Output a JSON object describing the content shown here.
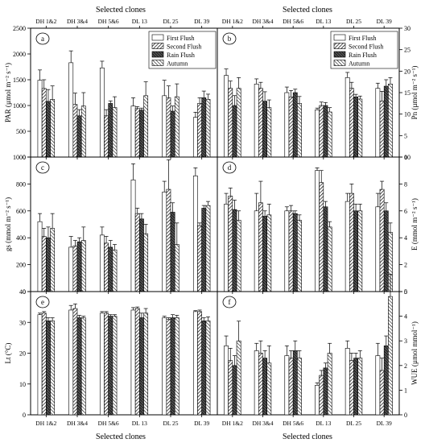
{
  "figure": {
    "top_xlabel": "Selected clones",
    "bottom_xlabel": "Selected clones",
    "legend_entries": [
      "First Flush",
      "Second Flush",
      "Rain Flush",
      "Autumn"
    ]
  },
  "chart_data": [
    {
      "type": "bar",
      "panel_label": "a",
      "ylabel": "PAR (µmol m⁻² s⁻¹)",
      "ylim": [
        0,
        2500
      ],
      "yticks": [
        "0",
        "500",
        "1000",
        "1500",
        "2000",
        "2500"
      ],
      "categories": [
        "DH 1&2",
        "DH 3&4",
        "DH 5&6",
        "DL 13",
        "DL 25",
        "DL 39"
      ],
      "legend_position": "top-right",
      "series": [
        {
          "name": "First Flush",
          "values": [
            1490,
            1830,
            1730,
            990,
            1190,
            770
          ],
          "errors": [
            200,
            230,
            130,
            160,
            300,
            100
          ]
        },
        {
          "name": "Second Flush",
          "values": [
            1330,
            1020,
            800,
            940,
            1150,
            1040
          ],
          "errors": [
            170,
            220,
            120,
            40,
            230,
            110
          ]
        },
        {
          "name": "Rain Flush",
          "values": [
            1080,
            800,
            1040,
            910,
            890,
            1150
          ],
          "errors": [
            230,
            120,
            50,
            40,
            100,
            130
          ]
        },
        {
          "name": "Autumn",
          "values": [
            1120,
            990,
            960,
            1190,
            1170,
            1120
          ],
          "errors": [
            260,
            260,
            210,
            270,
            250,
            100
          ]
        }
      ]
    },
    {
      "type": "bar",
      "panel_label": "b",
      "ylabel": "Pn (µmol m⁻² s⁻¹)",
      "ylim": [
        0,
        30
      ],
      "yticks": [
        "0",
        "5",
        "10",
        "15",
        "20",
        "25",
        "30"
      ],
      "categories": [
        "DH 1&2",
        "DH 3&4",
        "DH 5&6",
        "DL 13",
        "DL 25",
        "DL 39"
      ],
      "legend_position": "top-right",
      "series": [
        {
          "name": "First Flush",
          "values": [
            19,
            17,
            15,
            11,
            18.5,
            16
          ],
          "errors": [
            1.5,
            1.2,
            1.3,
            0.4,
            1.2,
            1.2
          ]
        },
        {
          "name": "Second Flush",
          "values": [
            16,
            16,
            14,
            12,
            16,
            13
          ],
          "errors": [
            1.7,
            1.4,
            1.5,
            0.8,
            1.4,
            2.3
          ]
        },
        {
          "name": "Rain Flush",
          "values": [
            12,
            13,
            15,
            12,
            14,
            16.5
          ],
          "errors": [
            2.3,
            2.2,
            0.8,
            0.7,
            0.6,
            1.5
          ]
        },
        {
          "name": "Autumn",
          "values": [
            16,
            11.5,
            12.5,
            10.5,
            13.5,
            17
          ],
          "errors": [
            2.5,
            1.8,
            1.6,
            1,
            0.7,
            1.5
          ]
        }
      ]
    },
    {
      "type": "bar",
      "panel_label": "c",
      "ylabel": "gs (mmol m⁻² s⁻¹)",
      "ylim": [
        0,
        1000
      ],
      "yticks": [
        "0",
        "200",
        "400",
        "600",
        "800",
        "1000"
      ],
      "categories": [
        "DH 1&2",
        "DH 3&4",
        "DH 5&6",
        "DL 13",
        "DL 25",
        "DL 39"
      ],
      "series": [
        {
          "name": "First Flush",
          "values": [
            520,
            330,
            420,
            830,
            740,
            860
          ],
          "errors": [
            60,
            80,
            60,
            120,
            80,
            60
          ]
        },
        {
          "name": "Second Flush",
          "values": [
            410,
            340,
            360,
            580,
            760,
            490
          ],
          "errors": [
            60,
            40,
            50,
            40,
            220,
            20
          ]
        },
        {
          "name": "Rain Flush",
          "values": [
            400,
            370,
            330,
            540,
            590,
            620
          ],
          "errors": [
            80,
            30,
            50,
            40,
            70,
            20
          ]
        },
        {
          "name": "Autumn",
          "values": [
            470,
            380,
            310,
            430,
            350,
            640
          ],
          "errors": [
            110,
            100,
            40,
            70,
            160,
            30
          ]
        }
      ]
    },
    {
      "type": "bar",
      "panel_label": "d",
      "ylabel": "E (mmol m⁻² s⁻¹)",
      "ylim": [
        0,
        10
      ],
      "yticks": [
        "0",
        "2",
        "4",
        "6",
        "8",
        "10"
      ],
      "categories": [
        "DH 1&2",
        "DH 3&4",
        "DH 5&6",
        "DL 13",
        "DL 25",
        "DL 39"
      ],
      "series": [
        {
          "name": "First Flush",
          "values": [
            6.5,
            6,
            6,
            9,
            6.7,
            6.3
          ],
          "errors": [
            0.8,
            1.3,
            0.3,
            0.2,
            0.6,
            1
          ]
        },
        {
          "name": "Second Flush",
          "values": [
            7.1,
            6.6,
            6,
            8.1,
            7.3,
            7.6
          ],
          "errors": [
            0.6,
            1.6,
            0.4,
            0.9,
            0.7,
            0.6
          ]
        },
        {
          "name": "Rain Flush",
          "values": [
            6.1,
            5.6,
            5.8,
            6.3,
            6,
            6
          ],
          "errors": [
            0.7,
            0.4,
            0.2,
            0.4,
            0.5,
            0.6
          ]
        },
        {
          "name": "Autumn",
          "values": [
            5.3,
            5.7,
            5.3,
            4.8,
            6,
            4.4
          ],
          "errors": [
            0.7,
            0.8,
            0.4,
            0.4,
            0.5,
            0.7
          ]
        }
      ]
    },
    {
      "type": "bar",
      "panel_label": "e",
      "ylabel": "Lt (°C)",
      "ylim": [
        0,
        40
      ],
      "yticks": [
        "0",
        "10",
        "20",
        "30",
        "40"
      ],
      "categories": [
        "DH 1&2",
        "DH 3&4",
        "DH 5&6",
        "DL 13",
        "DL 25",
        "DL 39"
      ],
      "series": [
        {
          "name": "First Flush",
          "values": [
            32.5,
            34,
            33,
            34,
            31.5,
            33.5
          ],
          "errors": [
            0.5,
            1.5,
            0.5,
            0.8,
            0.5,
            0.3
          ]
        },
        {
          "name": "Second Flush",
          "values": [
            33,
            34.5,
            33,
            34.5,
            31,
            33.5
          ],
          "errors": [
            0.5,
            1.5,
            0.5,
            0.5,
            0.5,
            0.5
          ]
        },
        {
          "name": "Rain Flush",
          "values": [
            30.5,
            31.5,
            32,
            31.5,
            31.5,
            30.5
          ],
          "errors": [
            1,
            0.8,
            0.5,
            1.5,
            1,
            1
          ]
        },
        {
          "name": "Autumn",
          "values": [
            30.5,
            31.5,
            32,
            33,
            31.5,
            30.5
          ],
          "errors": [
            1,
            0.5,
            0.5,
            1.5,
            0.8,
            1.3
          ]
        }
      ]
    },
    {
      "type": "bar",
      "panel_label": "f",
      "ylabel": "WUE (µmol mmol⁻¹)",
      "ylim": [
        0,
        5
      ],
      "yticks": [
        "0",
        "1",
        "2",
        "3",
        "4",
        "5"
      ],
      "categories": [
        "DH 1&2",
        "DH 3&4",
        "DH 5&6",
        "DL 13",
        "DL 25",
        "DL 39"
      ],
      "series": [
        {
          "name": "First Flush",
          "values": [
            2.8,
            2.6,
            2.4,
            1.2,
            2.7,
            2.4
          ],
          "errors": [
            0.4,
            0.3,
            0.4,
            0.1,
            0.3,
            0.5
          ]
        },
        {
          "name": "Second Flush",
          "values": [
            2.2,
            2.5,
            2.3,
            1.6,
            2.2,
            1.8
          ],
          "errors": [
            0.5,
            0.5,
            0.3,
            0.2,
            0.3,
            0.5
          ]
        },
        {
          "name": "Rain Flush",
          "values": [
            2,
            2.3,
            2.6,
            1.9,
            2.3,
            2.8
          ],
          "errors": [
            0.4,
            0.3,
            0.4,
            0.2,
            0.2,
            0.4
          ]
        },
        {
          "name": "Autumn",
          "values": [
            3,
            2.1,
            2.3,
            2.5,
            2.3,
            4.8
          ],
          "errors": [
            0.8,
            0.7,
            0.3,
            0.4,
            0.3,
            0.9
          ]
        }
      ]
    }
  ]
}
